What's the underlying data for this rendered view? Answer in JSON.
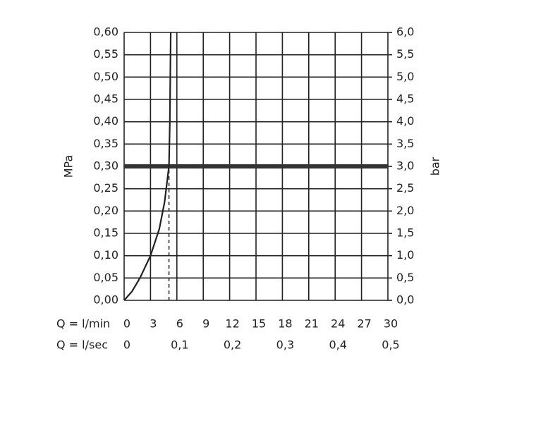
{
  "chart_data": {
    "type": "line",
    "y_label": "MPa",
    "y2_label": "bar",
    "x_row_label": "Q = l/min",
    "x2_row_label": "Q = l/sec",
    "x": [
      0,
      0.9,
      1.8,
      3,
      4,
      4.6,
      5.1,
      5.2,
      5.25,
      5.3
    ],
    "values": [
      0,
      0.02,
      0.05,
      0.1,
      0.16,
      0.22,
      0.3,
      0.4,
      0.5,
      0.6
    ],
    "color": "#222222",
    "xlim": [
      0,
      30
    ],
    "xticks": [
      0,
      3,
      6,
      9,
      12,
      15,
      18,
      21,
      24,
      27,
      30
    ],
    "x2lim": [
      0,
      0.5
    ],
    "x2ticks": [
      0,
      {
        "value": 0.1,
        "label": "0,1"
      },
      {
        "value": 0.2,
        "label": "0,2"
      },
      {
        "value": 0.3,
        "label": "0,3"
      },
      {
        "value": 0.4,
        "label": "0,4"
      },
      {
        "value": 0.5,
        "label": "0,5"
      }
    ],
    "ylim": [
      0,
      0.6
    ],
    "yticks": [
      {
        "value": 0,
        "label": "0,00"
      },
      {
        "value": 0.05,
        "label": "0,05"
      },
      {
        "value": 0.1,
        "label": "0,10"
      },
      {
        "value": 0.15,
        "label": "0,15"
      },
      {
        "value": 0.2,
        "label": "0,20"
      },
      {
        "value": 0.25,
        "label": "0,25"
      },
      {
        "value": 0.3,
        "label": "0,30"
      },
      {
        "value": 0.35,
        "label": "0,35"
      },
      {
        "value": 0.4,
        "label": "0,40"
      },
      {
        "value": 0.45,
        "label": "0,45"
      },
      {
        "value": 0.5,
        "label": "0,50"
      },
      {
        "value": 0.55,
        "label": "0,55"
      },
      {
        "value": 0.6,
        "label": "0,60"
      }
    ],
    "y2lim": [
      0,
      6
    ],
    "y2ticks": [
      {
        "value": 0,
        "label": "0,0"
      },
      {
        "value": 0.5,
        "label": "0,5"
      },
      {
        "value": 1,
        "label": "1,0"
      },
      {
        "value": 1.5,
        "label": "1,5"
      },
      {
        "value": 2,
        "label": "2,0"
      },
      {
        "value": 2.5,
        "label": "2,5"
      },
      {
        "value": 3,
        "label": "3,0"
      },
      {
        "value": 3.5,
        "label": "3,5"
      },
      {
        "value": 4,
        "label": "4,0"
      },
      {
        "value": 4.5,
        "label": "4,5"
      },
      {
        "value": 5,
        "label": "5,0"
      },
      {
        "value": 5.5,
        "label": "5,5"
      },
      {
        "value": 6,
        "label": "6,0"
      }
    ],
    "hline": 0.3,
    "vline": 5.1,
    "grid": true
  }
}
